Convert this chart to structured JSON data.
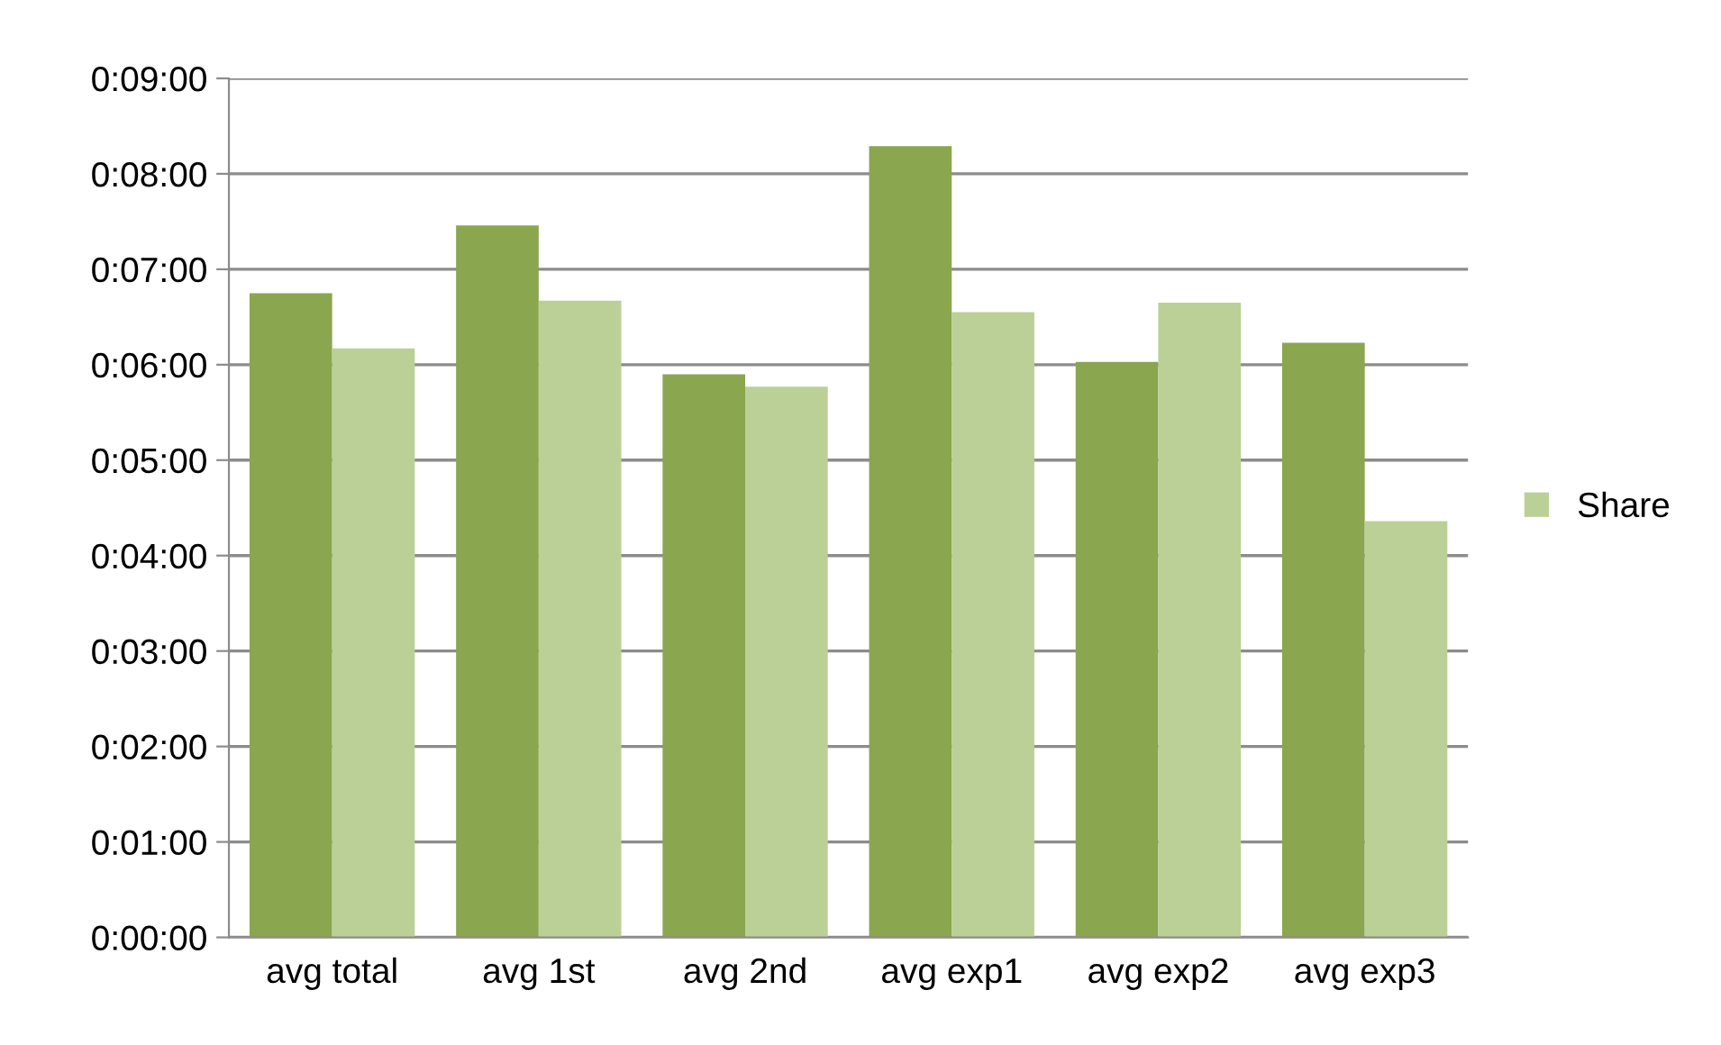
{
  "chart_data": {
    "type": "bar",
    "categories": [
      "avg total",
      "avg 1st",
      "avg 2nd",
      "avg exp1",
      "avg exp2",
      "avg exp3"
    ],
    "series": [
      {
        "color": "#8aa64e",
        "values": [
          6.75,
          7.46,
          5.9,
          8.29,
          6.03,
          6.23
        ]
      },
      {
        "name": "Share",
        "color": "#bad097",
        "values": [
          6.17,
          6.67,
          5.77,
          6.55,
          6.65,
          4.36
        ]
      }
    ],
    "ylim": [
      0,
      9
    ],
    "yticks": [
      {
        "value": 0,
        "label": "0:00:00"
      },
      {
        "value": 1,
        "label": "0:01:00"
      },
      {
        "value": 2,
        "label": "0:02:00"
      },
      {
        "value": 3,
        "label": "0:03:00"
      },
      {
        "value": 4,
        "label": "0:04:00"
      },
      {
        "value": 5,
        "label": "0:05:00"
      },
      {
        "value": 6,
        "label": "0:06:00"
      },
      {
        "value": 7,
        "label": "0:07:00"
      },
      {
        "value": 8,
        "label": "0:08:00"
      },
      {
        "value": 9,
        "label": "0:09:00"
      }
    ],
    "grid": "y",
    "legend": "right"
  }
}
